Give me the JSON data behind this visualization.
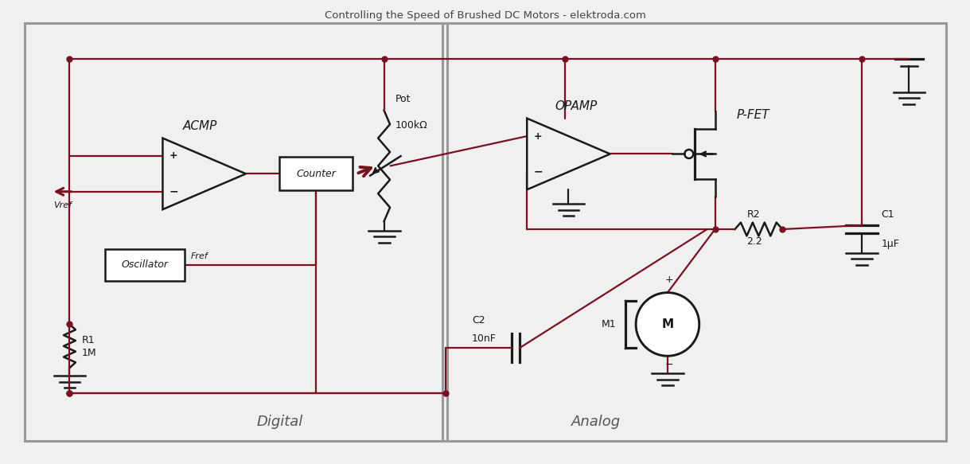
{
  "bg_color": "#f0f0f0",
  "wire_color": "#7a1020",
  "component_color": "#1a1a1a",
  "box_color": "#888888",
  "fig_width": 12.19,
  "fig_height": 5.83,
  "title": "Controlling the Speed of Brushed DC Motors - elektroda.com",
  "digital_label": "Digital",
  "analog_label": "Analog",
  "acmp_label": "ACMP",
  "opamp_label": "OPAMP",
  "pfet_label": "P-FET",
  "counter_label": "Counter",
  "oscillator_label": "Oscillator",
  "pot_label1": "Pot",
  "pot_label2": "100kΩ",
  "r1_label1": "R1",
  "r1_label2": "1M",
  "r2_label1": "R2",
  "r2_label2": "2.2",
  "c1_label1": "C1",
  "c1_label2": "1μF",
  "c2_label1": "C2",
  "c2_label2": "10nF",
  "m1_label": "M1",
  "vref_label": "Vref",
  "fref_label": "Fref"
}
